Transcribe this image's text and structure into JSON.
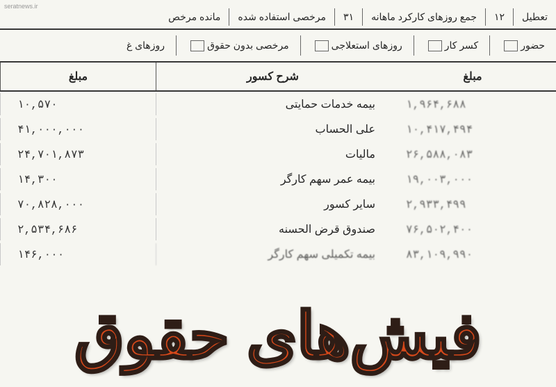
{
  "watermark": "seratnews.ir",
  "top_row": {
    "cell1": "تعطیل",
    "cell2": "۱۲",
    "cell3": "جمع روزهای کارکرد ماهانه",
    "cell4": "۳۱",
    "cell5": "مرخصی استفاده شده",
    "cell6": "مانده مرخص"
  },
  "second_row": {
    "cell1": "حضور",
    "cell2": "کسر کار",
    "cell3": "روزهای استعلاجی",
    "cell4": "مرخصی بدون حقوق",
    "cell5": "روزهای غ"
  },
  "header": {
    "amount1": "مبلغ",
    "desc": "شرح کسور",
    "amount2": "مبلغ"
  },
  "rows": [
    {
      "amount1": "۱۰,۵۷۰",
      "desc": "بیمه خدمات حمایتی",
      "amount2": "۱,۹۶۴,۶۸۸"
    },
    {
      "amount1": "۴۱,۰۰۰,۰۰۰",
      "desc": "علی الحساب",
      "amount2": "۱۰,۴۱۷,۴۹۴"
    },
    {
      "amount1": "۲۴,۷۰۱,۸۷۳",
      "desc": "مالیات",
      "amount2": "۲۶,۵۸۸,۰۸۳"
    },
    {
      "amount1": "۱۴,۳۰۰",
      "desc": "بیمه عمر سهم کارگر",
      "amount2": "۱۹,۰۰۳,۰۰۰"
    },
    {
      "amount1": "۷۰,۸۲۸,۰۰۰",
      "desc": "سایر کسور",
      "amount2": "۲,۹۳۳,۴۹۹"
    },
    {
      "amount1": "۲,۵۳۴,۶۸۶",
      "desc": "صندوق قرض الحسنه",
      "amount2": "۷۶,۵۰۲,۴۰۰"
    },
    {
      "amount1": "۱۴۶,۰۰۰",
      "desc": "بیمه تکمیلی سهم کارگر",
      "amount2": "۸۳,۱۰۹,۹۹۰"
    }
  ],
  "overlay": "فیش‌های حقوق",
  "colors": {
    "overlay_fill": "#d94515",
    "overlay_stroke": "#2a1810",
    "text": "#222222",
    "border": "#333333",
    "bg": "#fcfcf7"
  }
}
